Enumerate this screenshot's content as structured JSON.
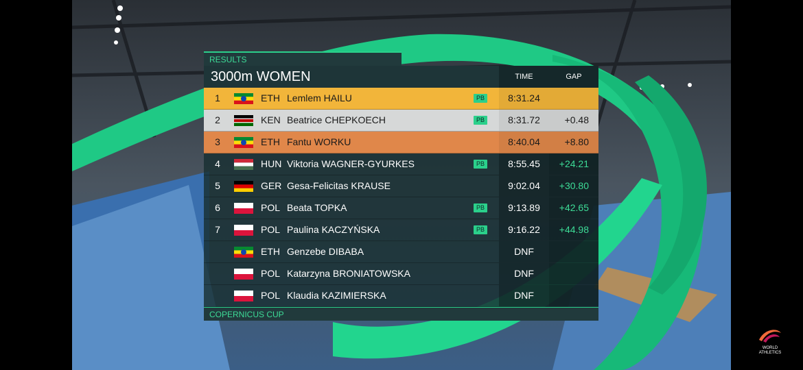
{
  "header": {
    "label": "RESULTS",
    "title": "3000m WOMEN",
    "columns": [
      "TIME",
      "GAP"
    ]
  },
  "rows": [
    {
      "rank": 1,
      "country": "ETH",
      "name": "Lemlem HAILU",
      "pb": "PB",
      "time": "8:31.24"
    },
    {
      "rank": 2,
      "country": "KEN",
      "name": "Beatrice CHEPKOECH",
      "pb": "PB",
      "time": "8:31.72",
      "gap": "+0.48"
    },
    {
      "rank": 3,
      "country": "ETH",
      "name": "Fantu WORKU",
      "time": "8:40.04",
      "gap": "+8.80"
    },
    {
      "rank": 4,
      "country": "HUN",
      "name": "Viktoria WAGNER-GYURKES",
      "pb": "PB",
      "time": "8:55.45",
      "gap": "+24.21"
    },
    {
      "rank": 5,
      "country": "GER",
      "name": "Gesa-Felicitas KRAUSE",
      "time": "9:02.04",
      "gap": "+30.80"
    },
    {
      "rank": 6,
      "country": "POL",
      "name": "Beata TOPKA",
      "pb": "PB",
      "time": "9:13.89",
      "gap": "+42.65"
    },
    {
      "rank": 7,
      "country": "POL",
      "name": "Paulina KACZYŃSKA",
      "pb": "PB",
      "time": "9:16.22",
      "gap": "+44.98"
    },
    {
      "country": "ETH",
      "name": "Genzebe DIBABA",
      "time": "DNF"
    },
    {
      "country": "POL",
      "name": "Katarzyna BRONIATOWSKA",
      "time": "DNF"
    },
    {
      "country": "POL",
      "name": "Klaudia KAZIMIERSKA",
      "time": "DNF"
    }
  ],
  "footer": "COPERNICUS CUP",
  "logo": [
    "WORLD",
    "ATHLETICS"
  ]
}
